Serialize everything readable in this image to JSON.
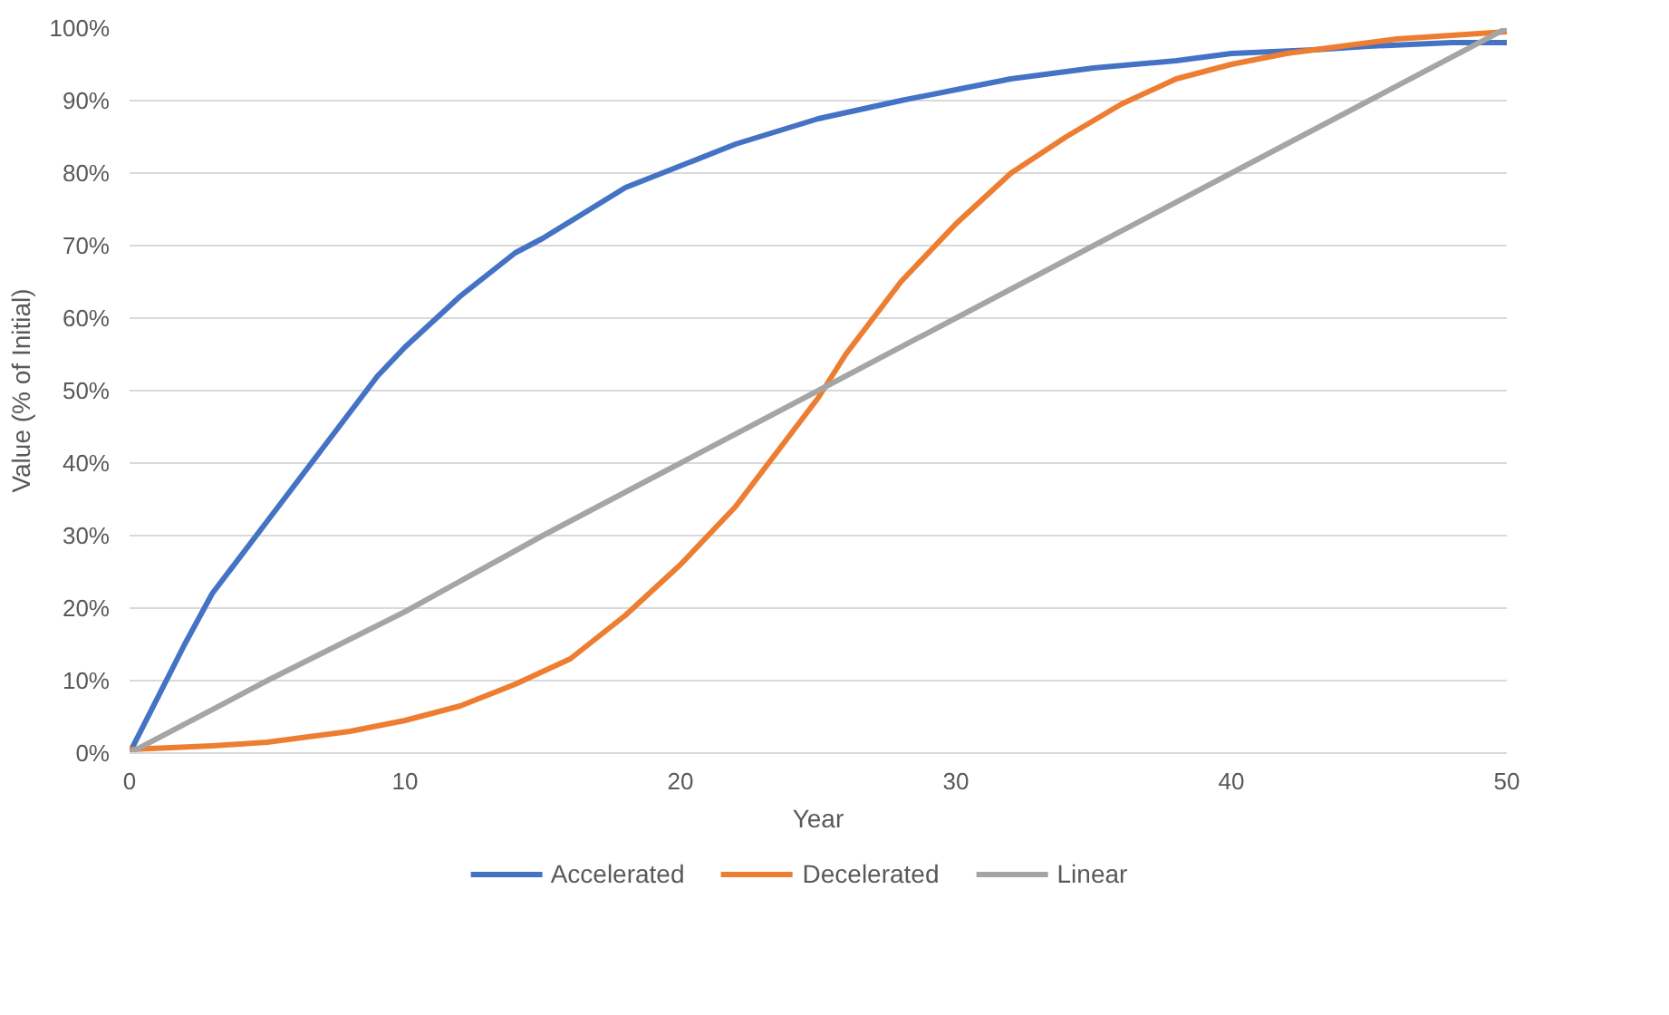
{
  "chart_data": {
    "type": "line",
    "xlabel": "Year",
    "ylabel": "Value (% of Initial)",
    "xlim": [
      0,
      50
    ],
    "xticks": [
      0,
      10,
      20,
      30,
      40,
      50
    ],
    "ylim": [
      0,
      100
    ],
    "yticks": [
      {
        "value": 0,
        "label": "0%"
      },
      {
        "value": 10,
        "label": "10%"
      },
      {
        "value": 20,
        "label": "20%"
      },
      {
        "value": 30,
        "label": "30%"
      },
      {
        "value": 40,
        "label": "40%"
      },
      {
        "value": 50,
        "label": "50%"
      },
      {
        "value": 60,
        "label": "60%"
      },
      {
        "value": 70,
        "label": "70%"
      },
      {
        "value": 80,
        "label": "80%"
      },
      {
        "value": 90,
        "label": "90%"
      },
      {
        "value": 100,
        "label": "100%"
      }
    ],
    "grid": "y",
    "legend": "bottom",
    "marker": "none",
    "line_style": "solid",
    "series": [
      {
        "name": "Accelerated",
        "color": "#4472c4",
        "x": [
          0,
          2,
          3,
          5,
          7,
          9,
          10,
          12,
          14,
          15,
          18,
          20,
          22,
          25,
          28,
          30,
          32,
          35,
          38,
          40,
          43,
          45,
          48,
          50
        ],
        "values": [
          0,
          15,
          22,
          32,
          42,
          52,
          56,
          63,
          69,
          71,
          78,
          81,
          84,
          87.5,
          90,
          91.5,
          93,
          94.5,
          95.5,
          96.5,
          97,
          97.5,
          98,
          98
        ]
      },
      {
        "name": "Decelerated",
        "color": "#ed7d31",
        "x": [
          0,
          3,
          5,
          8,
          10,
          12,
          14,
          16,
          18,
          20,
          22,
          24,
          25,
          26,
          28,
          30,
          32,
          34,
          36,
          38,
          40,
          42,
          44,
          46,
          48,
          50
        ],
        "values": [
          0.5,
          1,
          1.5,
          3,
          4.5,
          6.5,
          9.5,
          13,
          19,
          26,
          34,
          44,
          49,
          55,
          65,
          73,
          80,
          85,
          89.5,
          93,
          95,
          96.5,
          97.5,
          98.5,
          99,
          99.5
        ]
      },
      {
        "name": "Linear",
        "color": "#a5a5a5",
        "x": [
          0,
          5,
          10,
          15,
          20,
          25,
          30,
          35,
          40,
          45,
          50
        ],
        "values": [
          0,
          10,
          19.5,
          30,
          40,
          50,
          60,
          70,
          80,
          90,
          100
        ]
      }
    ]
  }
}
